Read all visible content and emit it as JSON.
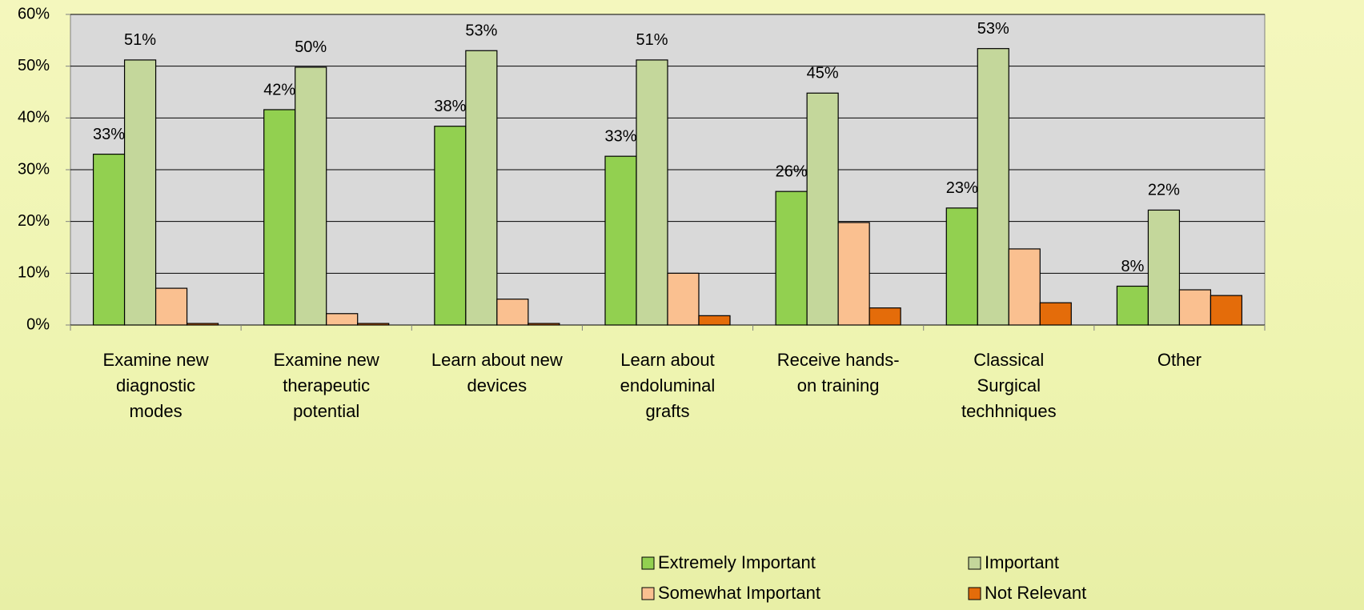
{
  "chart_data": {
    "type": "bar",
    "categories": [
      "Examine new diagnostic modes",
      "Examine new therapeutic potential",
      "Learn about new devices",
      "Learn about endoluminal grafts",
      "Receive hands-on training",
      "Classical Surgical techhniques",
      "Other"
    ],
    "series": [
      {
        "name": "Extremely Important",
        "color": "#92d050",
        "values": [
          33.0,
          41.6,
          38.4,
          32.6,
          25.8,
          22.6,
          7.5
        ],
        "value_labels": [
          "33%",
          "42%",
          "38%",
          "33%",
          "26%",
          "23%",
          "8%"
        ]
      },
      {
        "name": "Important",
        "color": "#c4d79b",
        "values": [
          51.2,
          49.8,
          53.0,
          51.2,
          44.8,
          53.4,
          22.2
        ],
        "value_labels": [
          "51%",
          "50%",
          "53%",
          "51%",
          "45%",
          "53%",
          "22%"
        ]
      },
      {
        "name": "Somewhat Important",
        "color": "#fac090",
        "values": [
          7.1,
          2.2,
          5.0,
          10.0,
          19.8,
          14.7,
          6.8
        ]
      },
      {
        "name": "Not Relevant",
        "color": "#e46c0a",
        "values": [
          0.3,
          0.3,
          0.3,
          1.8,
          3.3,
          4.3,
          5.7
        ]
      }
    ],
    "ylim": [
      0,
      60
    ],
    "yticks": [
      {
        "value": 0,
        "label": "0%"
      },
      {
        "value": 10,
        "label": "10%"
      },
      {
        "value": 20,
        "label": "20%"
      },
      {
        "value": 30,
        "label": "30%"
      },
      {
        "value": 40,
        "label": "40%"
      },
      {
        "value": 50,
        "label": "50%"
      },
      {
        "value": 60,
        "label": "60%"
      }
    ],
    "grid": true,
    "legend": "bottom"
  }
}
